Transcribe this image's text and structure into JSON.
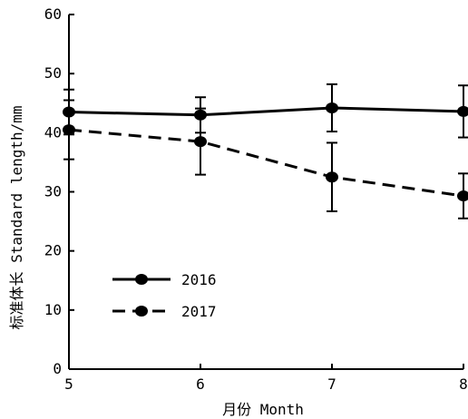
{
  "chart_data": {
    "type": "line",
    "xlabel": "月份 Month",
    "ylabel": "标准体长 Standard length/mm",
    "x": [
      5,
      6,
      7,
      8
    ],
    "xlim": [
      5,
      8
    ],
    "ylim": [
      0,
      60
    ],
    "xticks": [
      "5",
      "6",
      "7",
      "8"
    ],
    "yticks": [
      "0",
      "10",
      "20",
      "30",
      "40",
      "50",
      "60"
    ],
    "grid": false,
    "legend_position": "bottom-left",
    "series": [
      {
        "name": "2016",
        "line_style": "solid",
        "marker": "filled-circle",
        "values": [
          43.5,
          43.0,
          44.2,
          43.6
        ],
        "error": [
          3.8,
          3.0,
          4.0,
          4.4
        ]
      },
      {
        "name": "2017",
        "line_style": "dashed",
        "marker": "filled-circle",
        "values": [
          40.5,
          38.5,
          32.5,
          29.3
        ],
        "error": [
          5.0,
          5.6,
          5.8,
          3.8
        ]
      }
    ]
  }
}
